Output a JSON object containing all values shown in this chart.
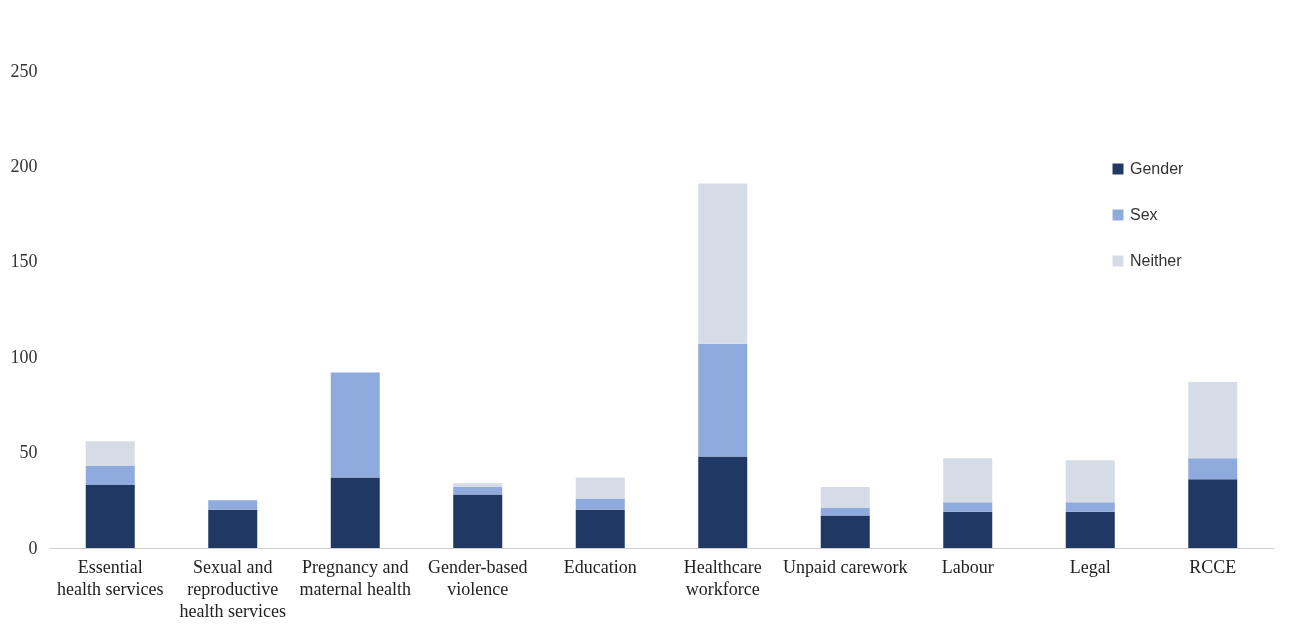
{
  "chart_data": {
    "type": "bar",
    "stacked": true,
    "categories": [
      "Essential health services",
      "Sexual and reproductive health services",
      "Pregnancy and maternal health",
      "Gender-based violence",
      "Education",
      "Healthcare workforce",
      "Unpaid carework",
      "Labour",
      "Legal",
      "RCCE"
    ],
    "series": [
      {
        "name": "Gender",
        "color": "#1f3864",
        "values": [
          33,
          20,
          37,
          28,
          20,
          48,
          17,
          19,
          19,
          36
        ]
      },
      {
        "name": "Sex",
        "color": "#8faadc",
        "values": [
          10,
          5,
          55,
          4,
          6,
          59,
          4,
          5,
          5,
          11
        ]
      },
      {
        "name": "Neither",
        "color": "#d6dce5",
        "values": [
          13,
          0,
          0,
          2,
          11,
          84,
          11,
          23,
          22,
          40
        ]
      }
    ],
    "ylim": [
      0,
      250
    ],
    "yticks": [
      0,
      50,
      100,
      150,
      200,
      250
    ],
    "grid": false,
    "legend": "top right"
  }
}
